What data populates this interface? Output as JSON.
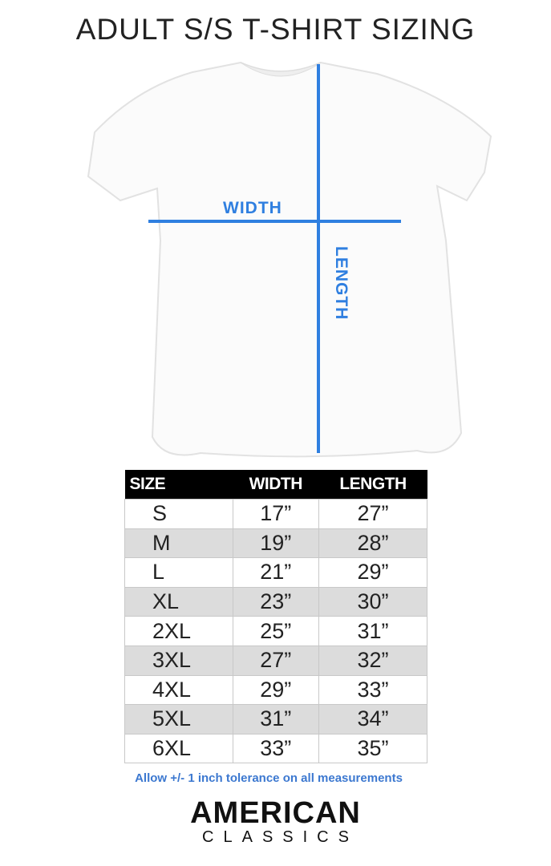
{
  "title": "ADULT S/S T-SHIRT SIZING",
  "diagram": {
    "width_label": "WIDTH",
    "length_label": "LENGTH",
    "line_color": "#2f7fe0"
  },
  "table": {
    "headers": [
      "SIZE",
      "WIDTH",
      "LENGTH"
    ],
    "rows": [
      [
        "S",
        "17”",
        "27”"
      ],
      [
        "M",
        "19”",
        "28”"
      ],
      [
        "L",
        "21”",
        "29”"
      ],
      [
        "XL",
        "23”",
        "30”"
      ],
      [
        "2XL",
        "25”",
        "31”"
      ],
      [
        "3XL",
        "27”",
        "32”"
      ],
      [
        "4XL",
        "29”",
        "33”"
      ],
      [
        "5XL",
        "31”",
        "34”"
      ],
      [
        "6XL",
        "33”",
        "35”"
      ]
    ]
  },
  "note": "Allow +/- 1 inch tolerance on all measurements",
  "logo": {
    "line1": "AMERICAN",
    "line2": "CLASSICS"
  }
}
